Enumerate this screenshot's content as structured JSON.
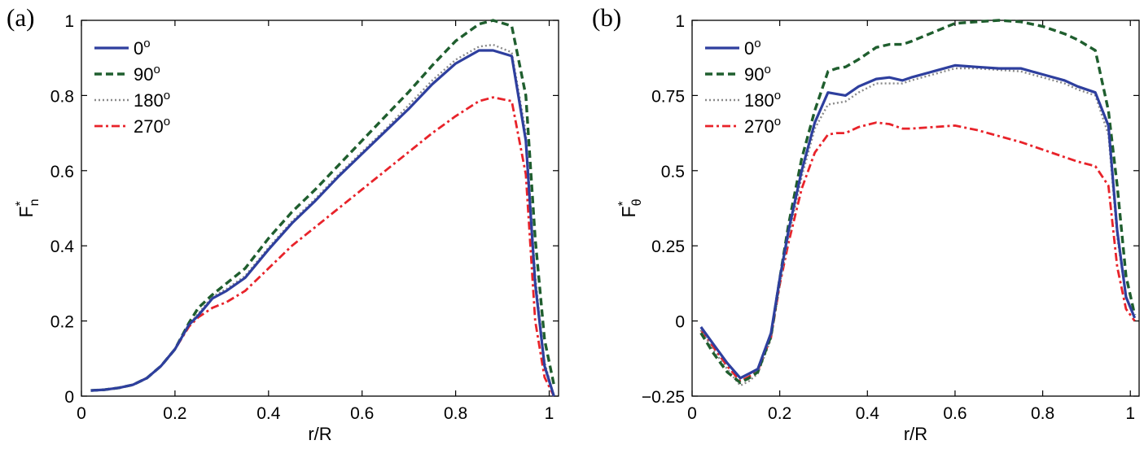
{
  "figure": {
    "background": "#ffffff"
  },
  "chart_data": [
    {
      "type": "line",
      "panel_label": "(a)",
      "xlabel": "r/R",
      "ylabel": "F",
      "ylabel_sub": "n",
      "ylabel_sup": "*",
      "xlim": [
        0,
        1.02
      ],
      "ylim": [
        0,
        1
      ],
      "xticks": [
        0,
        0.2,
        0.4,
        0.6,
        0.8,
        1
      ],
      "xtick_labels": [
        "0",
        "0.2",
        "0.4",
        "0.6",
        "0.8",
        "1"
      ],
      "yticks": [
        0,
        0.2,
        0.4,
        0.6,
        0.8,
        1
      ],
      "ytick_labels": [
        "0",
        "0.2",
        "0.4",
        "0.6",
        "0.8",
        "1"
      ],
      "grid": false,
      "legend_position": "top-left",
      "series": [
        {
          "name": "0",
          "name_sup": "o",
          "color": "#2e3f9e",
          "style": "solid",
          "x": [
            0.02,
            0.05,
            0.08,
            0.11,
            0.14,
            0.17,
            0.2,
            0.23,
            0.25,
            0.28,
            0.31,
            0.35,
            0.4,
            0.45,
            0.5,
            0.55,
            0.6,
            0.65,
            0.7,
            0.75,
            0.8,
            0.85,
            0.88,
            0.92,
            0.95,
            0.97,
            0.99,
            1.01
          ],
          "y": [
            0.015,
            0.017,
            0.022,
            0.03,
            0.048,
            0.08,
            0.125,
            0.19,
            0.215,
            0.26,
            0.28,
            0.315,
            0.39,
            0.46,
            0.52,
            0.585,
            0.645,
            0.705,
            0.765,
            0.83,
            0.885,
            0.92,
            0.92,
            0.905,
            0.68,
            0.3,
            0.08,
            0.0
          ]
        },
        {
          "name": "90",
          "name_sup": "o",
          "color": "#1f5e2e",
          "style": "dashed",
          "x": [
            0.02,
            0.05,
            0.08,
            0.11,
            0.14,
            0.17,
            0.2,
            0.23,
            0.25,
            0.28,
            0.31,
            0.35,
            0.4,
            0.45,
            0.5,
            0.55,
            0.6,
            0.65,
            0.7,
            0.75,
            0.8,
            0.85,
            0.88,
            0.92,
            0.95,
            0.97,
            0.99,
            1.01
          ],
          "y": [
            0.015,
            0.017,
            0.022,
            0.03,
            0.048,
            0.08,
            0.125,
            0.195,
            0.235,
            0.27,
            0.3,
            0.34,
            0.42,
            0.49,
            0.55,
            0.615,
            0.68,
            0.745,
            0.81,
            0.88,
            0.945,
            0.99,
            1.0,
            0.985,
            0.8,
            0.42,
            0.15,
            0.03
          ]
        },
        {
          "name": "180",
          "name_sup": "o",
          "color": "#8a8a8a",
          "style": "dotted",
          "x": [
            0.02,
            0.05,
            0.08,
            0.11,
            0.14,
            0.17,
            0.2,
            0.23,
            0.25,
            0.28,
            0.31,
            0.35,
            0.4,
            0.45,
            0.5,
            0.55,
            0.6,
            0.65,
            0.7,
            0.75,
            0.8,
            0.85,
            0.88,
            0.92,
            0.95,
            0.97,
            0.99,
            1.01
          ],
          "y": [
            0.015,
            0.017,
            0.022,
            0.03,
            0.048,
            0.08,
            0.125,
            0.19,
            0.22,
            0.265,
            0.285,
            0.32,
            0.395,
            0.465,
            0.525,
            0.59,
            0.65,
            0.71,
            0.775,
            0.84,
            0.895,
            0.93,
            0.935,
            0.915,
            0.7,
            0.32,
            0.09,
            0.0
          ]
        },
        {
          "name": "270",
          "name_sup": "o",
          "color": "#e8232a",
          "style": "dashdot",
          "x": [
            0.02,
            0.05,
            0.08,
            0.11,
            0.14,
            0.17,
            0.2,
            0.23,
            0.25,
            0.28,
            0.31,
            0.35,
            0.4,
            0.45,
            0.5,
            0.55,
            0.6,
            0.65,
            0.7,
            0.75,
            0.8,
            0.85,
            0.88,
            0.92,
            0.95,
            0.97,
            0.99,
            1.01
          ],
          "y": [
            0.015,
            0.017,
            0.022,
            0.03,
            0.048,
            0.08,
            0.125,
            0.185,
            0.21,
            0.235,
            0.25,
            0.28,
            0.34,
            0.4,
            0.45,
            0.5,
            0.55,
            0.6,
            0.65,
            0.7,
            0.745,
            0.785,
            0.795,
            0.785,
            0.59,
            0.2,
            0.05,
            0.0
          ]
        }
      ]
    },
    {
      "type": "line",
      "panel_label": "(b)",
      "xlabel": "r/R",
      "ylabel": "F",
      "ylabel_sub": "θ",
      "ylabel_sup": "*",
      "xlim": [
        0,
        1.02
      ],
      "ylim": [
        -0.25,
        1
      ],
      "xticks": [
        0,
        0.2,
        0.4,
        0.6,
        0.8,
        1
      ],
      "xtick_labels": [
        "0",
        "0.2",
        "0.4",
        "0.6",
        "0.8",
        "1"
      ],
      "yticks": [
        -0.25,
        0,
        0.25,
        0.5,
        0.75,
        1
      ],
      "ytick_labels": [
        "−0.25",
        "0",
        "0.25",
        "0.5",
        "0.75",
        "1"
      ],
      "grid": false,
      "legend_position": "top-left",
      "series": [
        {
          "name": "0",
          "name_sup": "o",
          "color": "#2e3f9e",
          "style": "solid",
          "x": [
            0.02,
            0.05,
            0.08,
            0.11,
            0.13,
            0.15,
            0.18,
            0.2,
            0.22,
            0.25,
            0.28,
            0.31,
            0.33,
            0.35,
            0.38,
            0.42,
            0.45,
            0.48,
            0.5,
            0.55,
            0.6,
            0.65,
            0.7,
            0.75,
            0.8,
            0.85,
            0.88,
            0.92,
            0.95,
            0.97,
            0.99,
            1.01
          ],
          "y": [
            -0.02,
            -0.08,
            -0.14,
            -0.19,
            -0.175,
            -0.16,
            -0.04,
            0.14,
            0.3,
            0.5,
            0.66,
            0.76,
            0.755,
            0.75,
            0.78,
            0.805,
            0.81,
            0.8,
            0.81,
            0.83,
            0.85,
            0.845,
            0.84,
            0.84,
            0.82,
            0.8,
            0.78,
            0.76,
            0.65,
            0.3,
            0.08,
            0.01
          ]
        },
        {
          "name": "90",
          "name_sup": "o",
          "color": "#1f5e2e",
          "style": "dashed",
          "x": [
            0.02,
            0.05,
            0.08,
            0.11,
            0.13,
            0.15,
            0.18,
            0.2,
            0.22,
            0.25,
            0.28,
            0.31,
            0.33,
            0.35,
            0.38,
            0.42,
            0.45,
            0.48,
            0.5,
            0.55,
            0.6,
            0.65,
            0.7,
            0.75,
            0.8,
            0.85,
            0.88,
            0.92,
            0.95,
            0.97,
            0.99,
            1.01
          ],
          "y": [
            -0.04,
            -0.11,
            -0.17,
            -0.205,
            -0.19,
            -0.17,
            -0.05,
            0.14,
            0.32,
            0.54,
            0.7,
            0.83,
            0.84,
            0.845,
            0.87,
            0.91,
            0.92,
            0.92,
            0.93,
            0.96,
            0.99,
            0.995,
            1.0,
            0.995,
            0.98,
            0.955,
            0.935,
            0.9,
            0.7,
            0.45,
            0.15,
            0.02
          ]
        },
        {
          "name": "180",
          "name_sup": "o",
          "color": "#8a8a8a",
          "style": "dotted",
          "x": [
            0.02,
            0.05,
            0.08,
            0.11,
            0.13,
            0.15,
            0.18,
            0.2,
            0.22,
            0.25,
            0.28,
            0.31,
            0.33,
            0.35,
            0.38,
            0.42,
            0.45,
            0.48,
            0.5,
            0.55,
            0.6,
            0.65,
            0.7,
            0.75,
            0.8,
            0.85,
            0.88,
            0.92,
            0.95,
            0.97,
            0.99,
            1.01
          ],
          "y": [
            -0.03,
            -0.1,
            -0.16,
            -0.215,
            -0.2,
            -0.175,
            -0.06,
            0.12,
            0.28,
            0.48,
            0.64,
            0.72,
            0.725,
            0.73,
            0.76,
            0.79,
            0.79,
            0.79,
            0.8,
            0.82,
            0.84,
            0.84,
            0.835,
            0.83,
            0.81,
            0.79,
            0.77,
            0.75,
            0.62,
            0.28,
            0.08,
            0.01
          ]
        },
        {
          "name": "270",
          "name_sup": "o",
          "color": "#e8232a",
          "style": "dashdot",
          "x": [
            0.02,
            0.05,
            0.08,
            0.11,
            0.13,
            0.15,
            0.18,
            0.2,
            0.22,
            0.25,
            0.28,
            0.31,
            0.33,
            0.35,
            0.38,
            0.42,
            0.45,
            0.48,
            0.5,
            0.55,
            0.6,
            0.65,
            0.7,
            0.75,
            0.8,
            0.85,
            0.88,
            0.92,
            0.95,
            0.97,
            0.99,
            1.01
          ],
          "y": [
            -0.03,
            -0.09,
            -0.15,
            -0.2,
            -0.185,
            -0.165,
            -0.055,
            0.12,
            0.26,
            0.44,
            0.56,
            0.62,
            0.625,
            0.625,
            0.645,
            0.66,
            0.655,
            0.64,
            0.64,
            0.645,
            0.65,
            0.635,
            0.615,
            0.595,
            0.57,
            0.545,
            0.53,
            0.515,
            0.45,
            0.18,
            0.04,
            0.0
          ]
        }
      ]
    }
  ]
}
